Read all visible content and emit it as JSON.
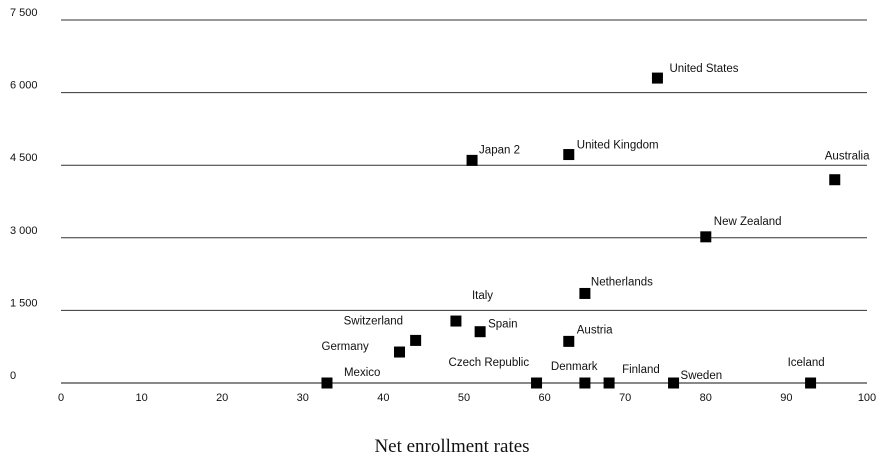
{
  "chart_data": {
    "type": "scatter",
    "xlabel": "Net enrollment rates",
    "ylabel": "",
    "xlim": [
      0,
      100
    ],
    "ylim": [
      0,
      7500
    ],
    "x_ticks": [
      0,
      10,
      20,
      30,
      40,
      50,
      60,
      70,
      80,
      90,
      100
    ],
    "y_ticks": [
      0,
      1500,
      3000,
      4500,
      6000,
      7500
    ],
    "x_tick_labels": [
      "0",
      "10",
      "20",
      "30",
      "40",
      "50",
      "60",
      "70",
      "80",
      "90",
      "100"
    ],
    "y_tick_labels": [
      "0",
      "1 500",
      "3 000",
      "4 500",
      "6 000",
      "7 500"
    ],
    "grid": "horizontal",
    "colors": {
      "marker": "#000000",
      "grid": "#333333"
    },
    "points": [
      {
        "label": "United States",
        "x": 74,
        "y": 6300
      },
      {
        "label": "Japan 2",
        "x": 51,
        "y": 4600
      },
      {
        "label": "United Kingdom",
        "x": 63,
        "y": 4720
      },
      {
        "label": "Australia",
        "x": 96,
        "y": 4200
      },
      {
        "label": "New Zealand",
        "x": 80,
        "y": 3020
      },
      {
        "label": "Netherlands",
        "x": 65,
        "y": 1850
      },
      {
        "label": "Italy",
        "x": 49,
        "y": 1280
      },
      {
        "label": "Spain",
        "x": 52,
        "y": 1060
      },
      {
        "label": "Switzerland",
        "x": 44,
        "y": 880
      },
      {
        "label": "Austria",
        "x": 63,
        "y": 860
      },
      {
        "label": "Germany",
        "x": 42,
        "y": 640
      },
      {
        "label": "Mexico",
        "x": 33,
        "y": 0
      },
      {
        "label": "Czech Republic",
        "x": 59,
        "y": 0
      },
      {
        "label": "Denmark",
        "x": 65,
        "y": 0
      },
      {
        "label": "Finland",
        "x": 68,
        "y": 0
      },
      {
        "label": "Sweden",
        "x": 76,
        "y": 0
      },
      {
        "label": "Iceland",
        "x": 93,
        "y": 0
      }
    ]
  }
}
